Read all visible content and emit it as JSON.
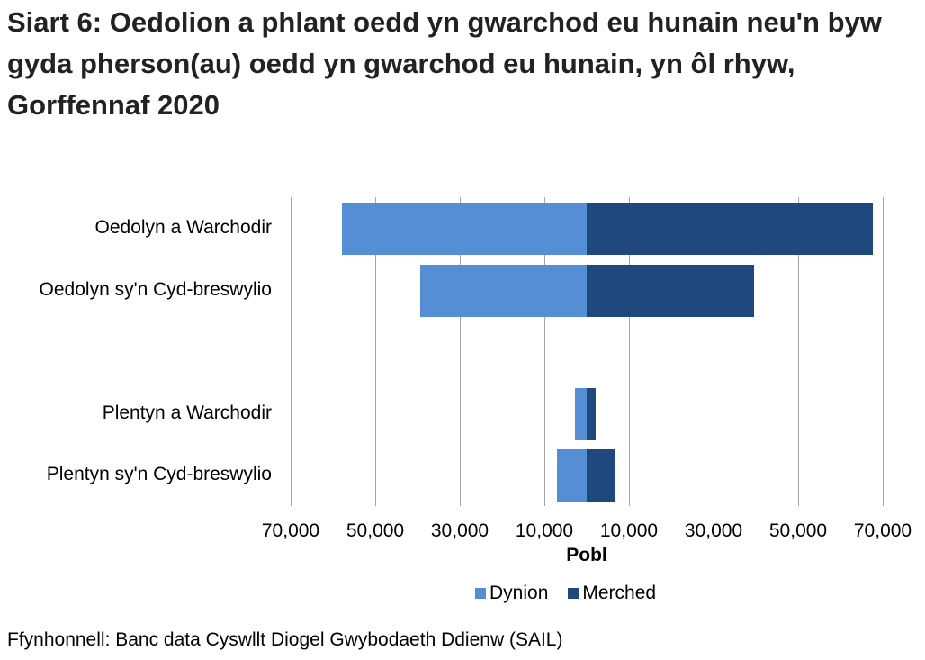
{
  "title": "Siart 6: Oedolion a phlant oedd yn gwarchod eu hunain neu'n byw gyda pherson(au) oedd yn gwarchod eu hunain, yn ôl rhyw, Gorffennaf 2020",
  "source": "Ffynhonnell: Banc data Cyswllt Diogel Gwybodaeth Ddienw (SAIL)",
  "colors": {
    "Dynion": "#558ed5",
    "Merched": "#1f497d",
    "grid": "#a6a6a6"
  },
  "axis": {
    "xlabel": "Pobl",
    "ticks": [
      "70,000",
      "50,000",
      "30,000",
      "10,000",
      "10,000",
      "30,000",
      "50,000",
      "70,000"
    ]
  },
  "legend": [
    {
      "name": "Dynion",
      "color": "#558ed5"
    },
    {
      "name": "Merched",
      "color": "#1f497d"
    }
  ],
  "categories": [
    "Oedolyn a Warchodir",
    "Oedolyn sy'n Cyd-breswylio",
    "Plentyn a Warchodir",
    "Plentyn sy'n Cyd-breswylio"
  ],
  "chart_data": {
    "type": "bar",
    "orientation": "horizontal",
    "stacking": "diverging (population pyramid)",
    "title": "Siart 6: Oedolion a phlant oedd yn gwarchod eu hunain neu'n byw gyda pherson(au) oedd yn gwarchod eu hunain, yn ôl rhyw, Gorffennaf 2020",
    "xlabel": "Pobl",
    "ylabel": "",
    "categories": [
      "Oedolyn a Warchodir",
      "Oedolyn sy'n Cyd-breswylio",
      "Plentyn a Warchodir",
      "Plentyn sy'n Cyd-breswylio"
    ],
    "series": [
      {
        "name": "Dynion",
        "side": "left",
        "values": [
          57900,
          39400,
          2800,
          7000
        ]
      },
      {
        "name": "Merched",
        "side": "right",
        "values": [
          67700,
          39600,
          2100,
          6800
        ]
      }
    ],
    "xlim": [
      -70000,
      70000
    ],
    "x_ticks": [
      -70000,
      -50000,
      -30000,
      -10000,
      10000,
      30000,
      50000,
      70000
    ],
    "x_tick_labels": [
      "70,000",
      "50,000",
      "30,000",
      "10,000",
      "10,000",
      "30,000",
      "50,000",
      "70,000"
    ],
    "grid": "vertical",
    "legend_position": "bottom",
    "source": "Ffynhonnell: Banc data Cyswllt Diogel Gwybodaeth Ddienw (SAIL)"
  }
}
